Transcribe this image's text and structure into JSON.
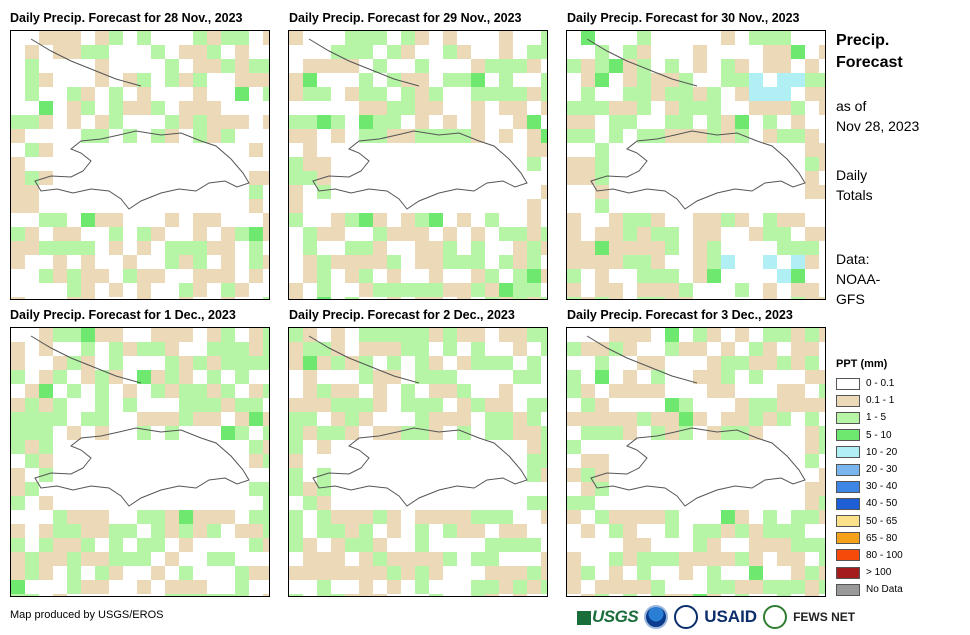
{
  "panels": [
    {
      "title": "Daily Precip. Forecast for 28 Nov., 2023"
    },
    {
      "title": "Daily Precip. Forecast for 29 Nov., 2023"
    },
    {
      "title": "Daily Precip. Forecast for 30 Nov., 2023"
    },
    {
      "title": "Daily Precip. Forecast for 1 Dec., 2023"
    },
    {
      "title": "Daily Precip. Forecast for 2 Dec., 2023"
    },
    {
      "title": "Daily Precip. Forecast for 3 Dec., 2023"
    }
  ],
  "sidebar": {
    "title_line1": "Precip.",
    "title_line2": "Forecast",
    "asof_line1": "as of",
    "asof_line2": "Nov 28, 2023",
    "totals_line1": "Daily",
    "totals_line2": "Totals",
    "data_line1": "Data:",
    "data_line2": "NOAA-",
    "data_line3": "GFS"
  },
  "legend": {
    "title": "PPT (mm)",
    "items": [
      {
        "label": "0 - 0.1",
        "color": "#ffffff"
      },
      {
        "label": "0.1 - 1",
        "color": "#ecd9b8"
      },
      {
        "label": "1 - 5",
        "color": "#b5f5a5"
      },
      {
        "label": "5 - 10",
        "color": "#6ee86e"
      },
      {
        "label": "10 - 20",
        "color": "#b0f0f5"
      },
      {
        "label": "20 - 30",
        "color": "#7ab6ee"
      },
      {
        "label": "30 - 40",
        "color": "#3d86e6"
      },
      {
        "label": "40 - 50",
        "color": "#1e5ed6"
      },
      {
        "label": "50 - 65",
        "color": "#fbe28a"
      },
      {
        "label": "65 - 80",
        "color": "#f5a21a"
      },
      {
        "label": "80 - 100",
        "color": "#f54a0a"
      },
      {
        "label": "> 100",
        "color": "#a51c1c"
      },
      {
        "label": "No Data",
        "color": "#999999"
      }
    ]
  },
  "footer": {
    "credit": "Map produced by USGS/EROS"
  },
  "logos": {
    "usgs": "USGS",
    "usaid": "USAID",
    "fews": "FEWS NET"
  },
  "colors": {
    "outline": "#555555",
    "frame": "#000000"
  }
}
